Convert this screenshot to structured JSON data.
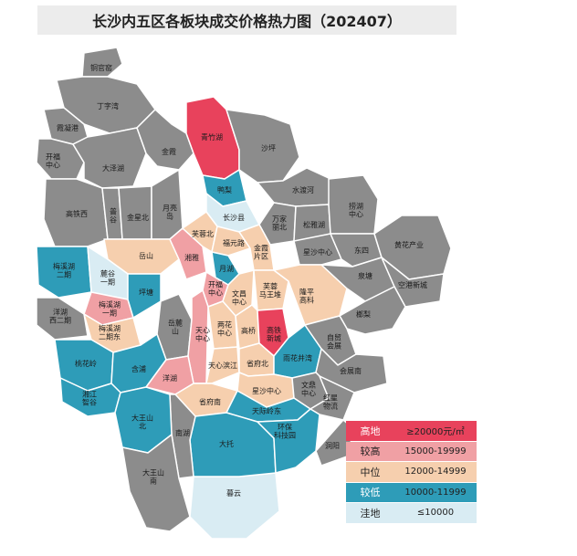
{
  "title": "长沙内五区各板块成交价格热力图（202407）",
  "colors": {
    "high": "#e8425c",
    "higher": "#f0a0a4",
    "mid": "#f6cfae",
    "lower": "#2e9cb8",
    "low": "#d9ecf3",
    "none": "#8c8c8c",
    "border": "#ffffff"
  },
  "legend": [
    {
      "name": "高地",
      "range": "≥20000元/㎡",
      "level": "high"
    },
    {
      "name": "较高",
      "range": "15000-19999",
      "level": "higher"
    },
    {
      "name": "中位",
      "range": "12000-14999",
      "level": "mid"
    },
    {
      "name": "较低",
      "range": "10000-11999",
      "level": "lower"
    },
    {
      "name": "洼地",
      "range": "≤10000",
      "level": "low"
    }
  ],
  "labels": {
    "l1": "铜官窑",
    "l2": "丁字湾",
    "l3": "霞凝港",
    "l4": "开福\n中心",
    "l5": "大泽湖",
    "l6": "金霞",
    "l7": "青竹湖",
    "l8": "沙坪",
    "l9": "高铁西",
    "l10": "普\n谷",
    "l11": "金星北",
    "l12": "月亮\n岛",
    "l13": "鸭梨",
    "l14": "水渡河",
    "l15": "万家\n丽北",
    "l16": "长沙县",
    "l17": "松雅湖",
    "l18": "捞湖\n中心",
    "l19": "星沙中心",
    "l20": "东四",
    "l21": "黄花产业",
    "l22": "岳山",
    "l23": "湘雅",
    "l24": "芙蓉北",
    "l25": "福元路",
    "l26": "金霞\n片区",
    "l27": "梅溪湖\n二期",
    "l28": "麓谷\n一期",
    "l29": "梅溪湖\n一期",
    "l30": "坪塘",
    "l31": "月湖",
    "l32": "开福\n中心",
    "l33": "文昌\n中心",
    "l34": "芙蓉\n马王堆",
    "l35": "隆平\n高科",
    "l36": "泉塘",
    "l37": "空港新城",
    "l38": "洋湖\n西二期",
    "l39": "梅溪湖\n二期东",
    "l40": "岳麓\n山",
    "l41": "天心\n中心",
    "l42": "两花\n中心",
    "l43": "高桥",
    "l44": "高铁\n新城",
    "l45": "榔梨",
    "l46": "桃花岭",
    "l47": "含浦",
    "l48": "洋湖",
    "l49": "天心滨江",
    "l50": "省府北",
    "l51": "雨花井湾",
    "l52": "自贸\n会展",
    "l53": "会展南",
    "l54": "湘江\n智谷",
    "l55": "省府南",
    "l56": "星沙中心",
    "l57": "文鼎\n中心",
    "l58": "红星\n物流",
    "l59": "天际岭东",
    "l60": "暮云",
    "l61": "大托",
    "l62": "环保\n科技园",
    "l63": "南湖",
    "l64": "洞阳",
    "l65": "大王山\n北",
    "l66": "大王山\n南"
  }
}
